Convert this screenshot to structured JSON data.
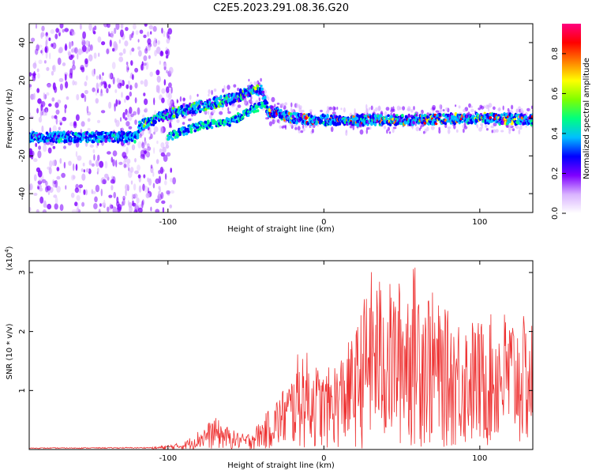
{
  "title": "C2E5.2023.291.08.36.G20",
  "chart_data": [
    {
      "type": "heatmap",
      "xlabel": "Height of straight line (km)",
      "ylabel": "Frequency (Hz)",
      "xlim": [
        -189,
        134
      ],
      "ylim": [
        -50,
        50
      ],
      "xticks": [
        -100,
        0,
        100
      ],
      "yticks": [
        -40,
        -20,
        0,
        20,
        40
      ],
      "colorbar": {
        "label": "Normalized spectral amplitude",
        "range": [
          0,
          0.95
        ],
        "ticks": [
          "0.0",
          "0.2",
          "0.4",
          "0.6",
          "0.8"
        ],
        "colors": [
          "#ffffff",
          "#d9b3ff",
          "#7f00ff",
          "#0000ff",
          "#00bfff",
          "#00ff7f",
          "#7fff00",
          "#ffff00",
          "#ff7f00",
          "#ff0000",
          "#ff007f"
        ]
      },
      "ridge": [
        {
          "x": -189,
          "freq": -10
        },
        {
          "x": -120,
          "freq": -10
        },
        {
          "x": -118,
          "freq": -4
        },
        {
          "x": -100,
          "freq": 2
        },
        {
          "x": -85,
          "freq": 5
        },
        {
          "x": -70,
          "freq": 8
        },
        {
          "x": -60,
          "freq": 10
        },
        {
          "x": -48,
          "freq": 14
        },
        {
          "x": -40,
          "freq": 15
        },
        {
          "x": -36,
          "freq": 4
        },
        {
          "x": -20,
          "freq": 0
        },
        {
          "x": 0,
          "freq": -1
        },
        {
          "x": 50,
          "freq": -1
        },
        {
          "x": 100,
          "freq": 0
        },
        {
          "x": 134,
          "freq": -1
        }
      ],
      "secondary_ridge": [
        {
          "x": -100,
          "freq": -10
        },
        {
          "x": -80,
          "freq": -4
        },
        {
          "x": -60,
          "freq": -2
        },
        {
          "x": -45,
          "freq": 5
        },
        {
          "x": -36,
          "freq": 8
        }
      ],
      "noise_region": [
        -189,
        -100
      ]
    },
    {
      "type": "line",
      "xlabel": "Height of straight line (km)",
      "ylabel": "SNR (10 * v/v)",
      "yunit_label": "(x10",
      "yunit_exp": "4",
      "yunit_close": ")",
      "xlim": [
        -189,
        134
      ],
      "ylim": [
        0,
        3.2
      ],
      "xticks": [
        -100,
        0,
        100
      ],
      "yticks": [
        1,
        2,
        3
      ],
      "color": "#ee3333",
      "envelope": [
        {
          "x": -189,
          "y": 0.03
        },
        {
          "x": -110,
          "y": 0.04
        },
        {
          "x": -90,
          "y": 0.12
        },
        {
          "x": -70,
          "y": 0.55
        },
        {
          "x": -60,
          "y": 0.35
        },
        {
          "x": -50,
          "y": 0.25
        },
        {
          "x": -40,
          "y": 0.5
        },
        {
          "x": -30,
          "y": 0.9
        },
        {
          "x": -20,
          "y": 1.3
        },
        {
          "x": -15,
          "y": 1.8
        },
        {
          "x": 0,
          "y": 1.3
        },
        {
          "x": 10,
          "y": 1.6
        },
        {
          "x": 20,
          "y": 2.0
        },
        {
          "x": 30,
          "y": 3.05
        },
        {
          "x": 45,
          "y": 2.8
        },
        {
          "x": 60,
          "y": 3.2
        },
        {
          "x": 75,
          "y": 2.4
        },
        {
          "x": 100,
          "y": 2.2
        },
        {
          "x": 115,
          "y": 2.4
        },
        {
          "x": 134,
          "y": 2.2
        }
      ]
    }
  ]
}
